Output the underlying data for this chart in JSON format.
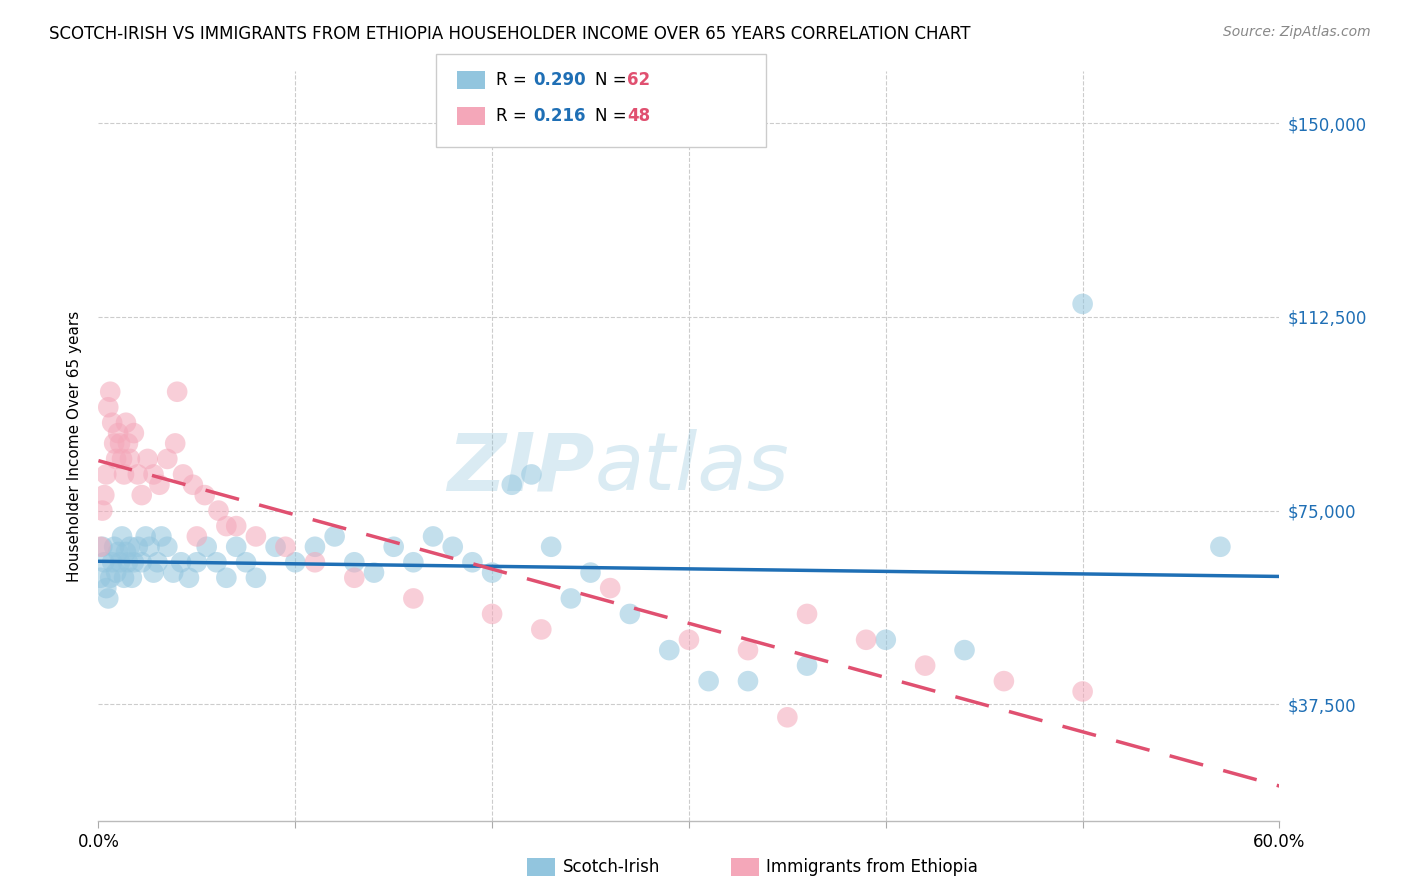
{
  "title": "SCOTCH-IRISH VS IMMIGRANTS FROM ETHIOPIA HOUSEHOLDER INCOME OVER 65 YEARS CORRELATION CHART",
  "source": "Source: ZipAtlas.com",
  "ylabel": "Householder Income Over 65 years",
  "legend_bottom": [
    "Scotch-Irish",
    "Immigrants from Ethiopia"
  ],
  "yticks": [
    37500,
    75000,
    112500,
    150000
  ],
  "ytick_labels": [
    "$37,500",
    "$75,000",
    "$112,500",
    "$150,000"
  ],
  "color_blue": "#92c5de",
  "color_pink": "#f4a7b9",
  "line_blue": "#1f6fb5",
  "line_pink": "#e05070",
  "watermark_line1": "ZIP",
  "watermark_line2": "atlas",
  "xmin": 0,
  "xmax": 60,
  "ymin": 15000,
  "ymax": 160000,
  "si_r": "0.290",
  "si_n": "62",
  "et_r": "0.216",
  "et_n": "48",
  "scotch_irish_x": [
    0.1,
    0.2,
    0.3,
    0.4,
    0.5,
    0.6,
    0.7,
    0.8,
    0.9,
    1.0,
    1.1,
    1.2,
    1.3,
    1.4,
    1.5,
    1.6,
    1.7,
    1.8,
    2.0,
    2.2,
    2.4,
    2.6,
    2.8,
    3.0,
    3.2,
    3.5,
    3.8,
    4.2,
    4.6,
    5.0,
    5.5,
    6.0,
    6.5,
    7.0,
    7.5,
    8.0,
    9.0,
    10.0,
    11.0,
    12.0,
    13.0,
    14.0,
    15.0,
    16.0,
    17.0,
    18.0,
    19.0,
    20.0,
    21.0,
    22.0,
    23.0,
    24.0,
    25.0,
    27.0,
    29.0,
    31.0,
    33.0,
    36.0,
    40.0,
    44.0,
    50.0,
    57.0
  ],
  "scotch_irish_y": [
    62000,
    68000,
    65000,
    60000,
    58000,
    62000,
    65000,
    68000,
    63000,
    67000,
    65000,
    70000,
    62000,
    67000,
    65000,
    68000,
    62000,
    65000,
    68000,
    65000,
    70000,
    68000,
    63000,
    65000,
    70000,
    68000,
    63000,
    65000,
    62000,
    65000,
    68000,
    65000,
    62000,
    68000,
    65000,
    62000,
    68000,
    65000,
    68000,
    70000,
    65000,
    63000,
    68000,
    65000,
    70000,
    68000,
    65000,
    63000,
    80000,
    82000,
    68000,
    58000,
    63000,
    55000,
    48000,
    42000,
    42000,
    45000,
    50000,
    48000,
    115000,
    68000
  ],
  "ethiopia_x": [
    0.1,
    0.2,
    0.3,
    0.4,
    0.5,
    0.6,
    0.7,
    0.8,
    0.9,
    1.0,
    1.1,
    1.2,
    1.3,
    1.4,
    1.5,
    1.6,
    1.8,
    2.0,
    2.2,
    2.5,
    2.8,
    3.1,
    3.5,
    3.9,
    4.3,
    4.8,
    5.4,
    6.1,
    7.0,
    8.0,
    9.5,
    11.0,
    13.0,
    16.0,
    20.0,
    22.5,
    26.0,
    30.0,
    33.0,
    36.0,
    39.0,
    42.0,
    46.0,
    50.0,
    4.0,
    5.0,
    6.5,
    35.0
  ],
  "ethiopia_y": [
    68000,
    75000,
    78000,
    82000,
    95000,
    98000,
    92000,
    88000,
    85000,
    90000,
    88000,
    85000,
    82000,
    92000,
    88000,
    85000,
    90000,
    82000,
    78000,
    85000,
    82000,
    80000,
    85000,
    88000,
    82000,
    80000,
    78000,
    75000,
    72000,
    70000,
    68000,
    65000,
    62000,
    58000,
    55000,
    52000,
    60000,
    50000,
    48000,
    55000,
    50000,
    45000,
    42000,
    40000,
    98000,
    70000,
    72000,
    35000
  ]
}
